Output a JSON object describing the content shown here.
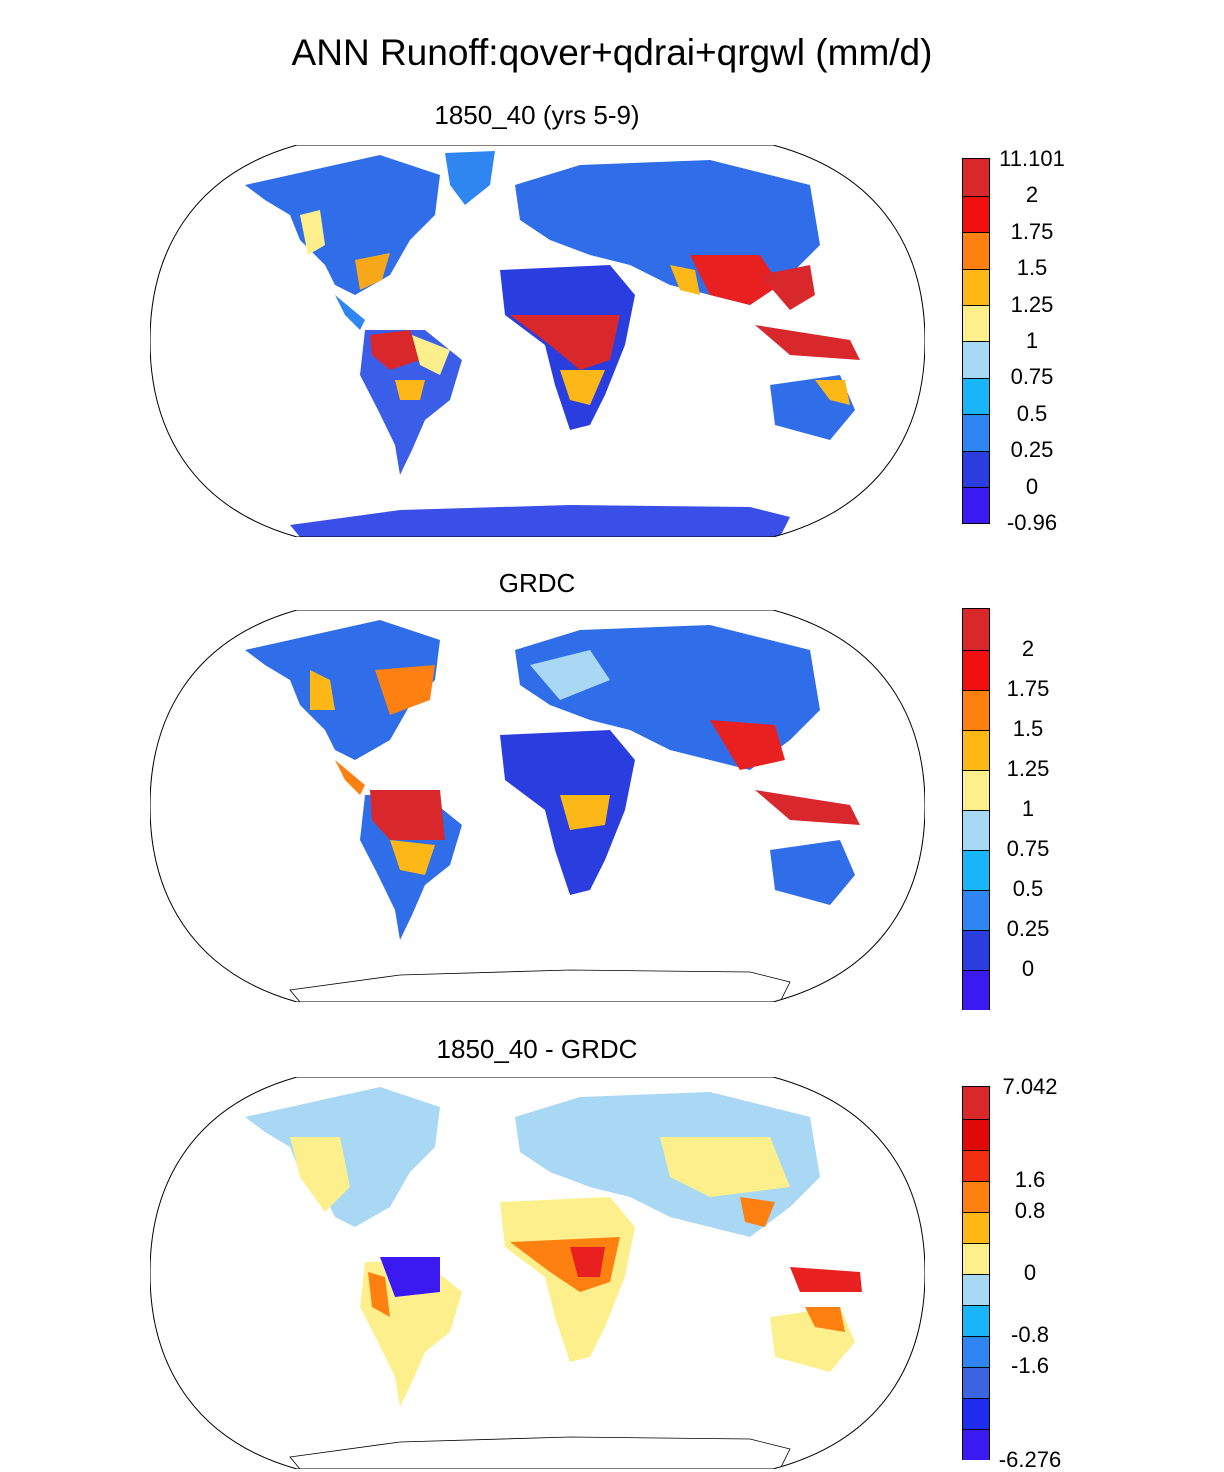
{
  "title": "ANN Runoff:qover+qdrai+qrgwl (mm/d)",
  "panels": [
    {
      "title": "1850_40 (yrs 5-9)",
      "colorbar": {
        "colors": [
          "#3a1af0",
          "#2a3ee0",
          "#2f86f0",
          "#18b6f8",
          "#a8d8f4",
          "#fdf08c",
          "#fdb818",
          "#fd8010",
          "#f01010",
          "#d8282c"
        ],
        "labels": [
          "-0.96",
          "0",
          "0.25",
          "0.5",
          "0.75",
          "1",
          "1.25",
          "1.5",
          "1.75",
          "2",
          "11.101"
        ]
      }
    },
    {
      "title": "GRDC",
      "colorbar": {
        "colors": [
          "#3a1af0",
          "#2a3ee0",
          "#2f86f0",
          "#18b6f8",
          "#a8d8f4",
          "#fdf08c",
          "#fdb818",
          "#fd8010",
          "#f01010",
          "#d8282c"
        ],
        "labels": [
          "0",
          "0.25",
          "0.5",
          "0.75",
          "1",
          "1.25",
          "1.5",
          "1.75",
          "2"
        ]
      }
    },
    {
      "title": "1850_40 - GRDC",
      "colorbar": {
        "colors": [
          "#3a1af0",
          "#1e2cf0",
          "#3a64e0",
          "#2f86f0",
          "#18b6f8",
          "#a8d8f4",
          "#fdf08c",
          "#fdb818",
          "#fd8010",
          "#f03010",
          "#e00808",
          "#d8282c"
        ],
        "labels": [
          "-6.276",
          "-1.6",
          "-0.8",
          "0",
          "0.8",
          "1.6",
          "7.042"
        ]
      }
    }
  ]
}
